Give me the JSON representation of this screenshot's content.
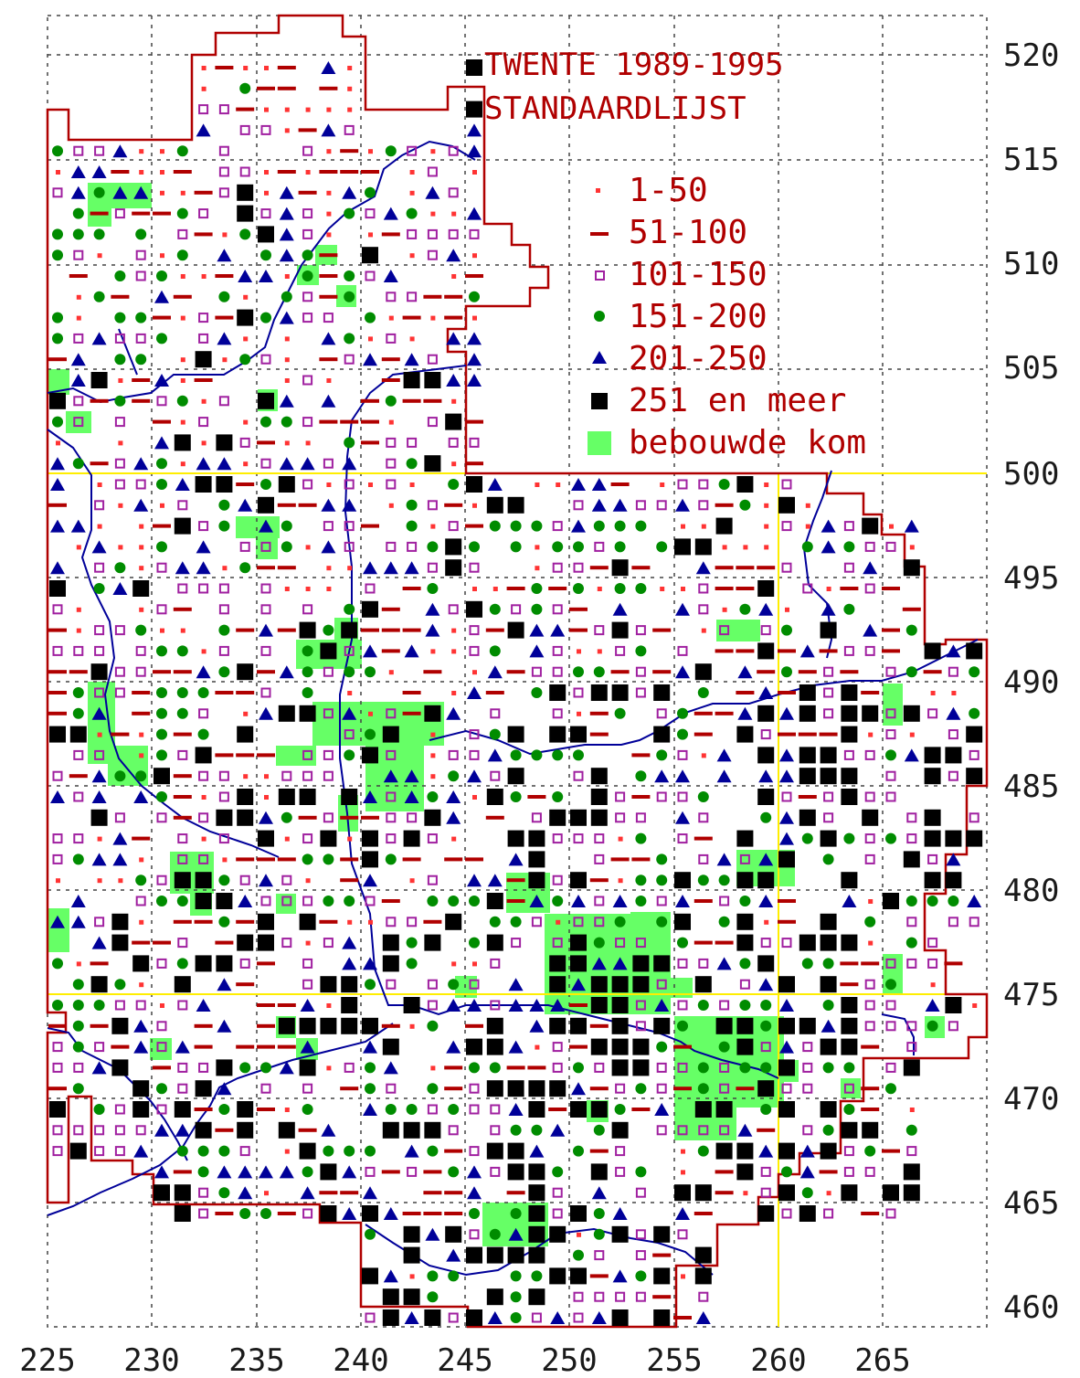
{
  "title": {
    "line1": "TWENTE 1989-1995",
    "line2": "STANDAARDLIJST"
  },
  "legend": [
    {
      "symbol": "dot",
      "label": "1-50",
      "color": "#ff3333"
    },
    {
      "symbol": "dash",
      "label": "51-100",
      "color": "#b00000"
    },
    {
      "symbol": "open-square",
      "label": "101-150",
      "color": "#a020a0"
    },
    {
      "symbol": "circle",
      "label": "151-200",
      "color": "#008c00"
    },
    {
      "symbol": "triangle",
      "label": "201-250",
      "color": "#000099"
    },
    {
      "symbol": "square",
      "label": "251 en meer",
      "color": "#000000"
    },
    {
      "symbol": "area",
      "label": "bebouwde kom",
      "color": "#66ff66"
    }
  ],
  "x_axis": {
    "ticks": [
      "225",
      "230",
      "235",
      "240",
      "245",
      "250",
      "255",
      "260",
      "265"
    ]
  },
  "y_axis": {
    "ticks": [
      "520",
      "515",
      "510",
      "505",
      "500",
      "495",
      "490",
      "485",
      "480",
      "475",
      "470",
      "465",
      "460"
    ]
  },
  "colors": {
    "boundary": "#b00000",
    "river": "#000099",
    "grid": "#444444",
    "reference_lines": "#ffee00"
  }
}
